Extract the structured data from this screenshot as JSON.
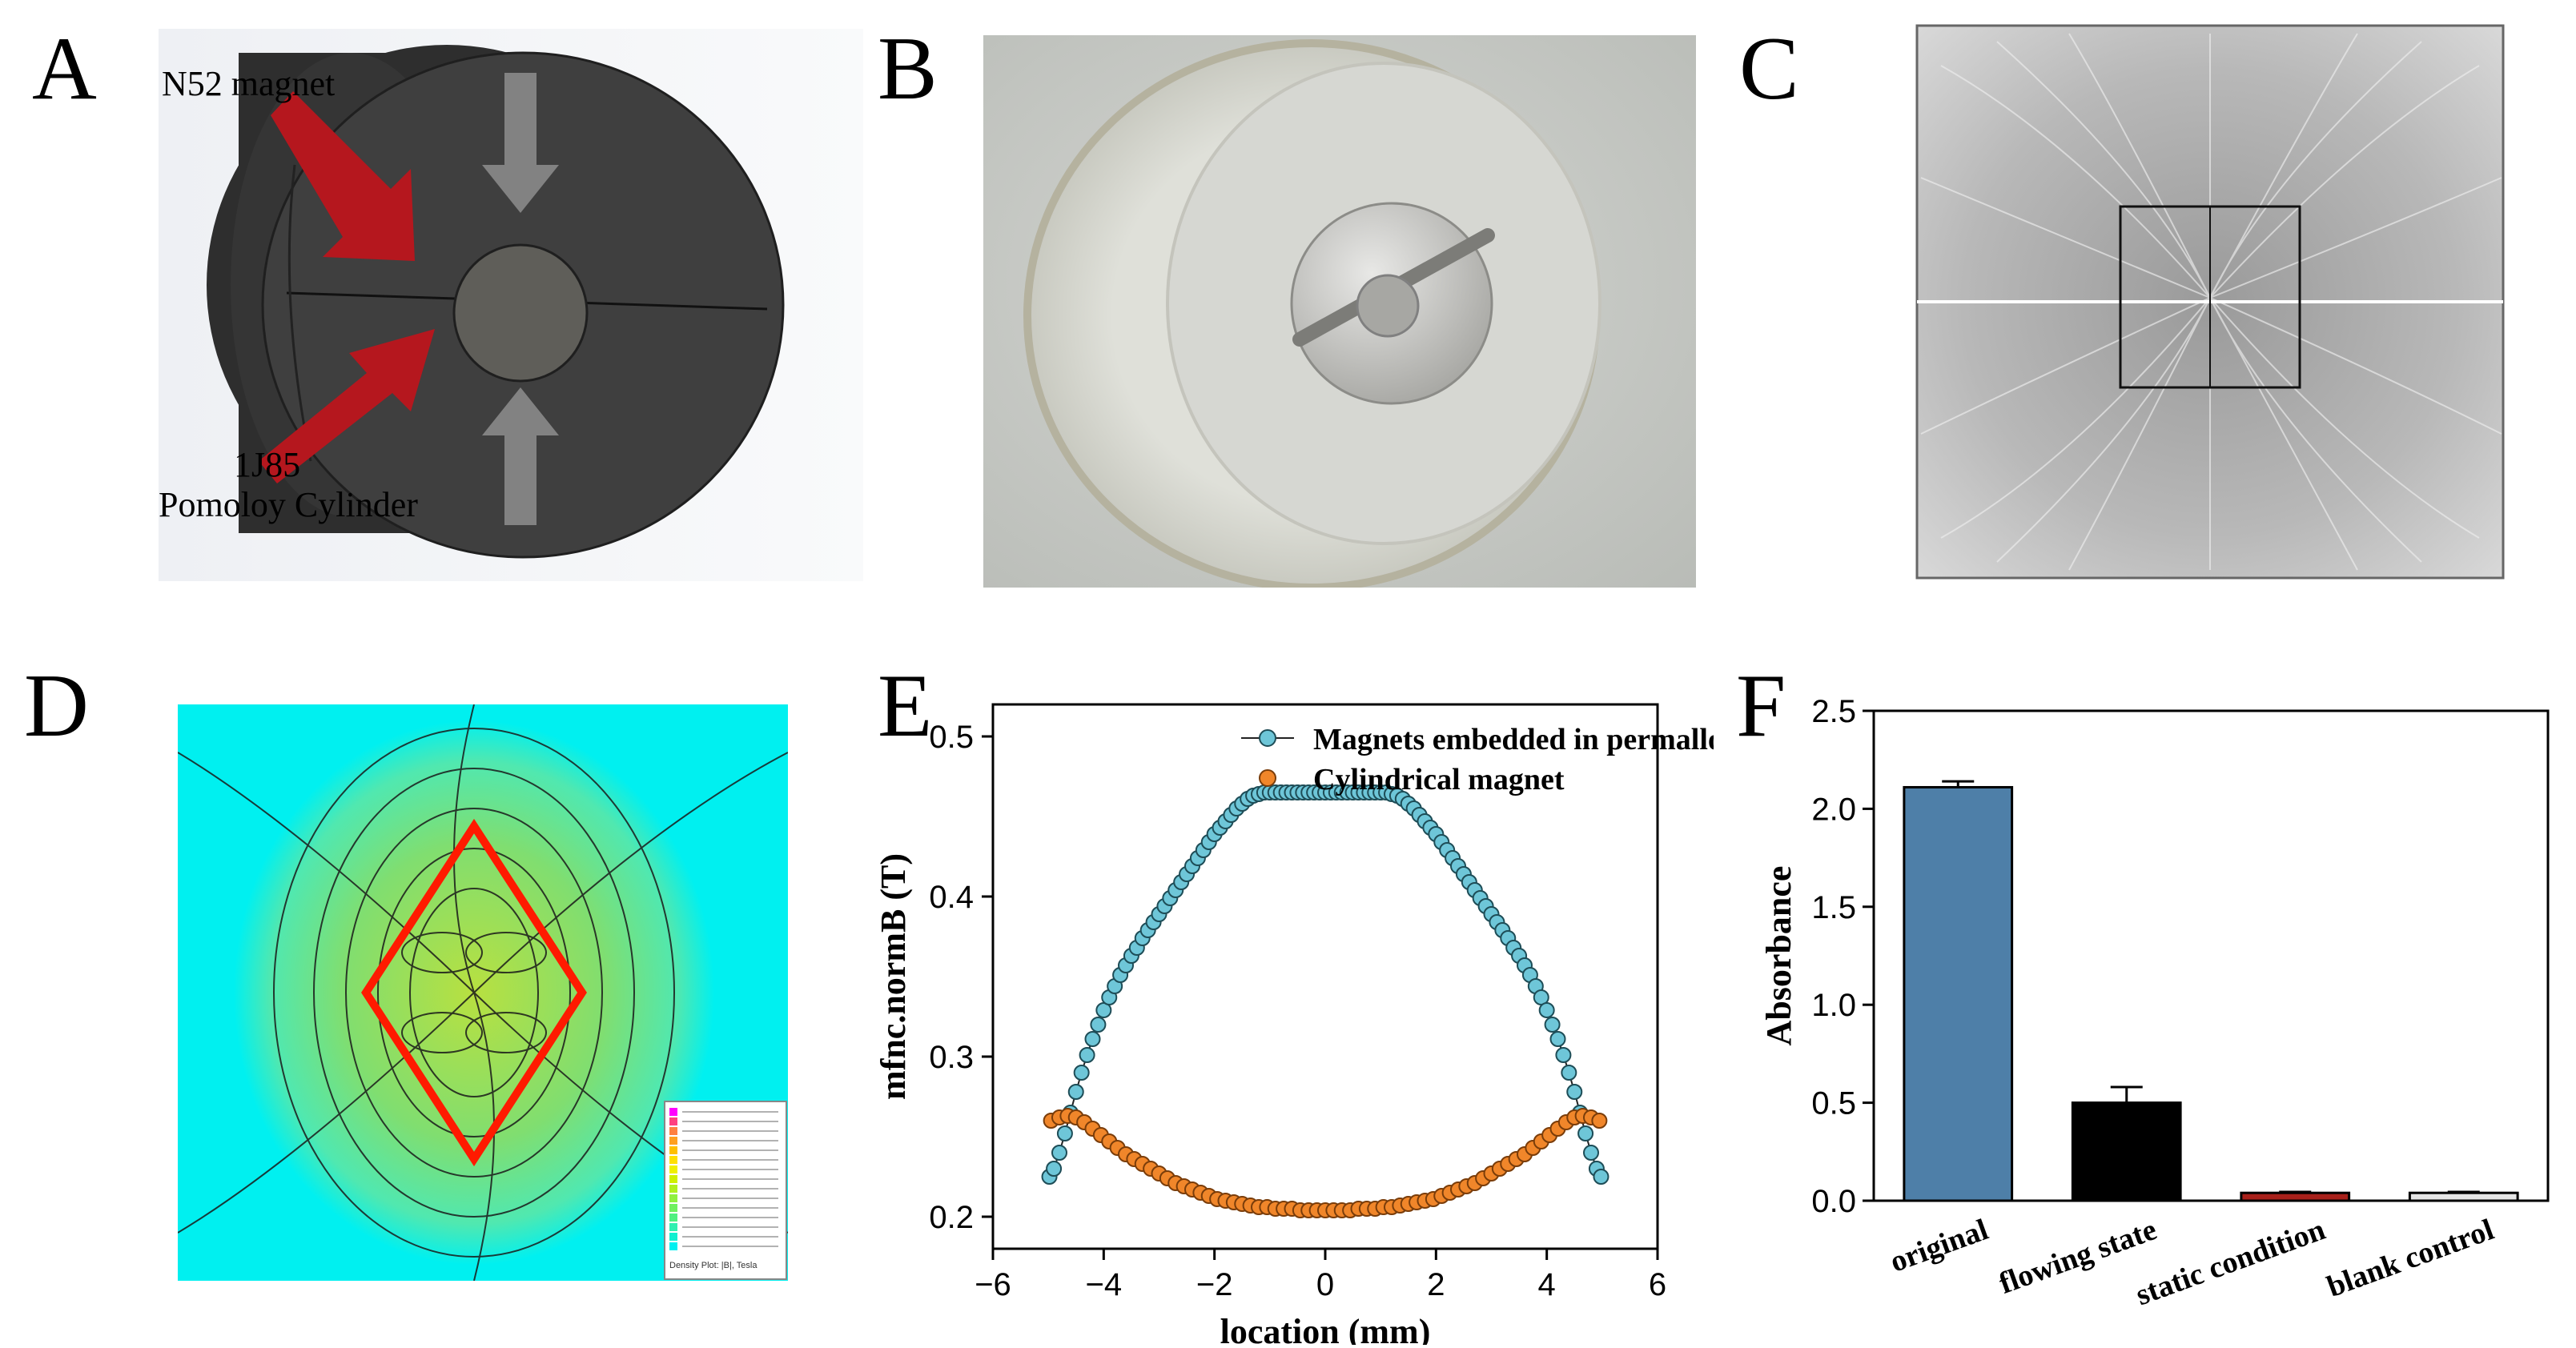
{
  "panels": {
    "a": {
      "letter": "A",
      "magnet_label": "N52 magnet",
      "cyl_label_1": "1J85",
      "cyl_label_2": "Pomoloy Cylinder"
    },
    "b": {
      "letter": "B"
    },
    "c": {
      "letter": "C"
    },
    "d": {
      "letter": "D",
      "legend_caption": "Density Plot: |B|, Tesla"
    },
    "e": {
      "letter": "E"
    },
    "f": {
      "letter": "F"
    }
  },
  "colors": {
    "arrow_red": "#b5171e",
    "body_gray": "#3d3d3d",
    "field_cyan": "#00f0f0",
    "diamond_red": "#ff1a00",
    "series1": "#6ec6d8",
    "series2": "#f0862a",
    "bar_original": "#4e7fa8",
    "bar_flowing": "#000000",
    "bar_static": "#a8201a",
    "bar_blank": "#e6e6e6"
  },
  "chart_data": [
    {
      "type": "scatter",
      "panel": "E",
      "xlabel": "location (mm)",
      "ylabel": "mfnc.normB (T)",
      "xlim": [
        -6,
        6
      ],
      "ylim": [
        0.18,
        0.52
      ],
      "xticks": [
        -6,
        -4,
        -2,
        0,
        2,
        4,
        6
      ],
      "xtick_labels": [
        "−6",
        "−4",
        "−2",
        "0",
        "2",
        "4",
        "6"
      ],
      "yticks": [
        0.2,
        0.3,
        0.4,
        0.5
      ],
      "ytick_labels": [
        "0.2",
        "0.3",
        "0.4",
        "0.5"
      ],
      "legend_position": "top-right",
      "series": [
        {
          "name": "Magnets embedded in permalloy",
          "marker": "circle-cyan-with-line",
          "x": [
            -4.98,
            -4.9,
            -4.8,
            -4.7,
            -4.6,
            -4.5,
            -4.4,
            -4.3,
            -4.2,
            -4.1,
            -4.0,
            -3.9,
            -3.8,
            -3.7,
            -3.6,
            -3.5,
            -3.4,
            -3.3,
            -3.2,
            -3.1,
            -3.0,
            -2.9,
            -2.8,
            -2.7,
            -2.6,
            -2.5,
            -2.4,
            -2.3,
            -2.2,
            -2.1,
            -2.0,
            -1.9,
            -1.8,
            -1.7,
            -1.6,
            -1.5,
            -1.4,
            -1.3,
            -1.2,
            -1.1,
            -1.0,
            -0.9,
            -0.8,
            -0.7,
            -0.6,
            -0.5,
            -0.4,
            -0.3,
            -0.2,
            -0.1,
            0.0,
            0.1,
            0.2,
            0.3,
            0.4,
            0.5,
            0.6,
            0.7,
            0.8,
            0.9,
            1.0,
            1.1,
            1.2,
            1.3,
            1.4,
            1.5,
            1.6,
            1.7,
            1.8,
            1.9,
            2.0,
            2.1,
            2.2,
            2.3,
            2.4,
            2.5,
            2.6,
            2.7,
            2.8,
            2.9,
            3.0,
            3.1,
            3.2,
            3.3,
            3.4,
            3.5,
            3.6,
            3.7,
            3.8,
            3.9,
            4.0,
            4.1,
            4.2,
            4.3,
            4.4,
            4.5,
            4.6,
            4.7,
            4.8,
            4.9,
            4.98
          ],
          "y": [
            0.225,
            0.23,
            0.24,
            0.252,
            0.265,
            0.278,
            0.29,
            0.301,
            0.311,
            0.32,
            0.329,
            0.337,
            0.344,
            0.351,
            0.357,
            0.363,
            0.368,
            0.374,
            0.379,
            0.384,
            0.389,
            0.394,
            0.399,
            0.404,
            0.409,
            0.414,
            0.419,
            0.424,
            0.429,
            0.434,
            0.439,
            0.443,
            0.447,
            0.451,
            0.455,
            0.458,
            0.461,
            0.463,
            0.464,
            0.465,
            0.465,
            0.465,
            0.465,
            0.465,
            0.465,
            0.465,
            0.465,
            0.465,
            0.465,
            0.465,
            0.465,
            0.465,
            0.465,
            0.465,
            0.465,
            0.465,
            0.465,
            0.465,
            0.465,
            0.465,
            0.465,
            0.465,
            0.464,
            0.463,
            0.461,
            0.458,
            0.455,
            0.451,
            0.447,
            0.443,
            0.439,
            0.434,
            0.429,
            0.424,
            0.419,
            0.414,
            0.409,
            0.404,
            0.399,
            0.394,
            0.389,
            0.384,
            0.379,
            0.374,
            0.368,
            0.363,
            0.357,
            0.351,
            0.344,
            0.337,
            0.329,
            0.32,
            0.311,
            0.301,
            0.29,
            0.278,
            0.265,
            0.252,
            0.24,
            0.23,
            0.225
          ]
        },
        {
          "name": "Cylindrical magnet",
          "marker": "circle-orange",
          "x": [
            -4.95,
            -4.8,
            -4.65,
            -4.5,
            -4.35,
            -4.2,
            -4.05,
            -3.9,
            -3.75,
            -3.6,
            -3.45,
            -3.3,
            -3.15,
            -3.0,
            -2.85,
            -2.7,
            -2.55,
            -2.4,
            -2.25,
            -2.1,
            -1.95,
            -1.8,
            -1.65,
            -1.5,
            -1.35,
            -1.2,
            -1.05,
            -0.9,
            -0.75,
            -0.6,
            -0.45,
            -0.3,
            -0.15,
            0.0,
            0.15,
            0.3,
            0.45,
            0.6,
            0.75,
            0.9,
            1.05,
            1.2,
            1.35,
            1.5,
            1.65,
            1.8,
            1.95,
            2.1,
            2.25,
            2.4,
            2.55,
            2.7,
            2.85,
            3.0,
            3.15,
            3.3,
            3.45,
            3.6,
            3.75,
            3.9,
            4.05,
            4.2,
            4.35,
            4.5,
            4.65,
            4.8,
            4.95
          ],
          "y": [
            0.26,
            0.262,
            0.263,
            0.262,
            0.259,
            0.255,
            0.251,
            0.247,
            0.243,
            0.239,
            0.236,
            0.233,
            0.23,
            0.227,
            0.224,
            0.221,
            0.219,
            0.217,
            0.215,
            0.213,
            0.211,
            0.21,
            0.209,
            0.208,
            0.207,
            0.206,
            0.206,
            0.205,
            0.205,
            0.205,
            0.204,
            0.204,
            0.204,
            0.204,
            0.204,
            0.204,
            0.204,
            0.205,
            0.205,
            0.205,
            0.206,
            0.206,
            0.207,
            0.208,
            0.209,
            0.21,
            0.211,
            0.213,
            0.215,
            0.217,
            0.219,
            0.221,
            0.224,
            0.227,
            0.23,
            0.233,
            0.236,
            0.239,
            0.243,
            0.247,
            0.251,
            0.255,
            0.259,
            0.262,
            0.263,
            0.262,
            0.26
          ]
        }
      ]
    },
    {
      "type": "bar",
      "panel": "F",
      "ylabel": "Absorbance",
      "ylim": [
        0.0,
        2.5
      ],
      "yticks": [
        0.0,
        0.5,
        1.0,
        1.5,
        2.0,
        2.5
      ],
      "ytick_labels": [
        "0.0",
        "0.5",
        "1.0",
        "1.5",
        "2.0",
        "2.5"
      ],
      "categories": [
        "original",
        "flowing state",
        "static condition",
        "blank control"
      ],
      "values": [
        2.11,
        0.5,
        0.04,
        0.04
      ],
      "errors": [
        0.03,
        0.08,
        0.005,
        0.005
      ]
    }
  ]
}
